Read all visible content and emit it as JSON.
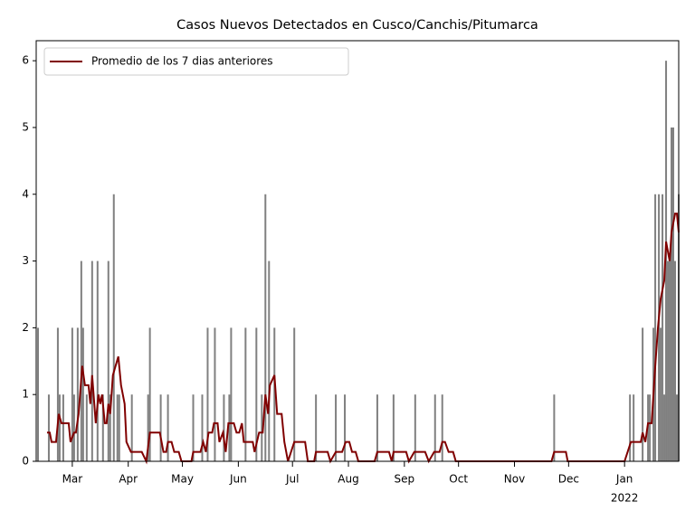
{
  "chart_data": {
    "type": "bar",
    "title": "Casos Nuevos Detectados en Cusco/Canchis/Pitumarca",
    "x_year_label": "2022",
    "xlim": [
      -20,
      336
    ],
    "ylim": [
      0,
      6.3
    ],
    "xticks": [
      {
        "value": 0,
        "label": "Mar"
      },
      {
        "value": 31,
        "label": "Apr"
      },
      {
        "value": 61,
        "label": "May"
      },
      {
        "value": 92,
        "label": "Jun"
      },
      {
        "value": 122,
        "label": "Jul"
      },
      {
        "value": 153,
        "label": "Aug"
      },
      {
        "value": 184,
        "label": "Sep"
      },
      {
        "value": 214,
        "label": "Oct"
      },
      {
        "value": 245,
        "label": "Nov"
      },
      {
        "value": 275,
        "label": "Dec"
      },
      {
        "value": 306,
        "label": "Jan"
      }
    ],
    "yticks": [
      0,
      1,
      2,
      3,
      4,
      5,
      6
    ],
    "legend": "upper left",
    "series": [
      {
        "type": "bar",
        "color": "#808080",
        "x": [
          -19,
          -13,
          -8,
          -7,
          -5,
          0,
          1,
          3,
          5,
          6,
          8,
          11,
          14,
          17,
          20,
          21,
          23,
          25,
          26,
          33,
          42,
          43,
          49,
          53,
          67,
          72,
          75,
          79,
          84,
          87,
          88,
          96,
          102,
          105,
          107,
          109,
          112,
          123,
          135,
          146,
          151,
          169,
          178,
          190,
          201,
          205,
          267,
          309,
          311,
          316,
          319,
          320,
          322,
          323,
          325,
          326,
          327,
          328,
          329,
          330,
          331,
          332,
          333,
          334,
          335,
          336
        ],
        "values": [
          2,
          1,
          2,
          1,
          1,
          2,
          1,
          2,
          3,
          2,
          1,
          3,
          3,
          1,
          3,
          1,
          4,
          1,
          1,
          1,
          1,
          2,
          1,
          1,
          1,
          1,
          2,
          2,
          1,
          1,
          2,
          2,
          2,
          1,
          4,
          3,
          2,
          2,
          1,
          1,
          1,
          1,
          1,
          1,
          1,
          1,
          1,
          1,
          1,
          2,
          1,
          1,
          2,
          4,
          4,
          2,
          4,
          1,
          6,
          3,
          3,
          5,
          5,
          3,
          1,
          4
        ]
      },
      {
        "type": "line",
        "name": "Promedio de los 7 dias anteriores",
        "color": "#800000",
        "x": [
          -14,
          -12.5,
          -11.5,
          -9,
          -7.5,
          -6,
          -2,
          -1,
          1,
          2,
          3.5,
          5.5,
          7,
          9,
          10,
          11,
          13,
          14.5,
          15.5,
          16.5,
          18,
          19,
          20,
          21,
          22.5,
          24,
          25.5,
          27,
          29,
          30,
          32.5,
          38.5,
          41,
          43,
          48.5,
          50.5,
          52,
          53,
          55,
          56.5,
          59,
          60.5,
          66,
          67,
          71,
          72.5,
          74,
          75.5,
          77.5,
          78.5,
          80.5,
          81.5,
          83.5,
          85,
          86.5,
          89.5,
          91,
          92.5,
          94,
          95,
          100,
          101,
          103.5,
          105.5,
          107,
          108.5,
          109.5,
          112,
          113.5,
          116,
          117.5,
          119.5,
          123,
          129,
          130.5,
          134,
          135,
          141.5,
          143,
          146,
          149.5,
          151.5,
          153.5,
          155,
          157,
          158.5,
          167.5,
          169,
          175.5,
          177,
          178,
          185,
          186.5,
          189.5,
          195.5,
          197.5,
          200.5,
          203.5,
          205,
          206.5,
          208.5,
          211,
          212.5,
          265.5,
          267,
          273.5,
          274.5,
          306,
          309.5,
          315,
          316,
          317.5,
          319,
          321,
          323,
          324.5,
          326,
          328,
          329,
          331,
          332,
          334,
          335,
          336
        ],
        "values": [
          0.43,
          0.43,
          0.29,
          0.29,
          0.71,
          0.57,
          0.57,
          0.29,
          0.43,
          0.43,
          0.71,
          1.43,
          1.14,
          1.14,
          0.86,
          1.29,
          0.57,
          1,
          0.86,
          1,
          0.57,
          0.57,
          0.86,
          0.71,
          1.29,
          1.43,
          1.57,
          1.14,
          0.86,
          0.29,
          0.14,
          0.14,
          0,
          0.43,
          0.43,
          0.14,
          0.14,
          0.29,
          0.29,
          0.14,
          0.14,
          0,
          0,
          0.14,
          0.14,
          0.29,
          0.14,
          0.43,
          0.43,
          0.57,
          0.57,
          0.29,
          0.43,
          0.14,
          0.57,
          0.57,
          0.43,
          0.43,
          0.57,
          0.29,
          0.29,
          0.14,
          0.43,
          0.43,
          1,
          0.71,
          1.14,
          1.29,
          0.71,
          0.71,
          0.29,
          0,
          0.29,
          0.29,
          0,
          0,
          0.14,
          0.14,
          0,
          0.14,
          0.14,
          0.29,
          0.29,
          0.14,
          0.14,
          0,
          0,
          0.14,
          0.14,
          0,
          0.14,
          0.14,
          0,
          0.14,
          0.14,
          0,
          0.14,
          0.14,
          0.29,
          0.29,
          0.14,
          0.14,
          0,
          0,
          0.14,
          0.14,
          0,
          0,
          0.29,
          0.29,
          0.43,
          0.29,
          0.57,
          0.57,
          1.43,
          2,
          2.43,
          2.71,
          3.29,
          3,
          3.43,
          3.71,
          3.71,
          3.43
        ]
      }
    ]
  }
}
